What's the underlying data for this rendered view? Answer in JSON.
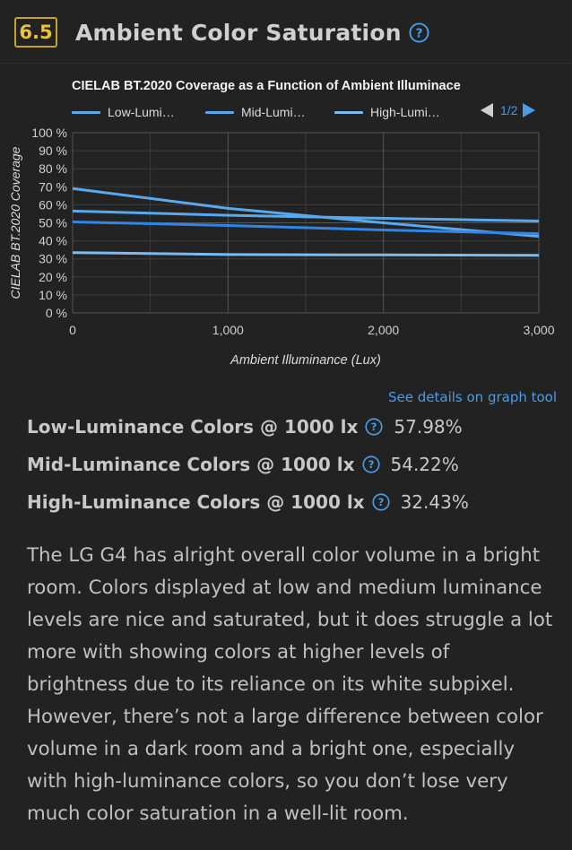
{
  "section": {
    "number": "6.5",
    "title": "Ambient Color Saturation"
  },
  "legend": {
    "items": [
      "Low-Lumi…",
      "Mid-Lumi…",
      "High-Lumi…"
    ],
    "page_label": "1/2"
  },
  "details_link": "See details on graph tool",
  "metrics": [
    {
      "label": "Low-Luminance Colors @ 1000 lx",
      "value": "57.98%"
    },
    {
      "label": "Mid-Luminance Colors @ 1000 lx",
      "value": "54.22%"
    },
    {
      "label": "High-Luminance Colors @ 1000 lx",
      "value": "32.43%"
    }
  ],
  "description": "The LG G4 has alright overall color volume in a bright room. Colors displayed at low and medium luminance levels are nice and saturated, but it does struggle a lot more with showing colors at higher levels of brightness due to its reliance on its white subpixel. However, there’s not a large difference between color volume in a dark room and a bright one, especially with high-luminance colors, so you don’t lose very much color saturation in a well-lit room.",
  "colors": {
    "accent": "#4a9be8",
    "badge_border": "#c9a227",
    "badge_text": "#e8c33d",
    "background": "#222222"
  },
  "chart_data": {
    "type": "line",
    "title": "CIELAB BT.2020 Coverage as a Function of Ambient Illuminace",
    "xlabel": "Ambient Illuminance (Lux)",
    "ylabel": "CIELAB BT.2020 Coverage",
    "xlim": [
      0,
      3000
    ],
    "ylim": [
      0,
      100
    ],
    "x_ticks": [
      "0",
      "1,000",
      "2,000",
      "3,000"
    ],
    "y_ticks": [
      "0 %",
      "10 %",
      "20 %",
      "30 %",
      "40 %",
      "50 %",
      "60 %",
      "70 %",
      "80 %",
      "90 %",
      "100 %"
    ],
    "grid": true,
    "legend_position": "top",
    "series": [
      {
        "color": "#5aa9ee",
        "points": [
          [
            0,
            69
          ],
          [
            1000,
            58
          ],
          [
            2000,
            50
          ],
          [
            3000,
            42.5
          ]
        ]
      },
      {
        "color": "#2f86ea",
        "points": [
          [
            0,
            50.5
          ],
          [
            1000,
            48.5
          ],
          [
            2000,
            46
          ],
          [
            3000,
            44
          ]
        ]
      },
      {
        "color": "#5aa9ee",
        "points": [
          [
            0,
            56.5
          ],
          [
            1000,
            54.2
          ],
          [
            2000,
            52.5
          ],
          [
            3000,
            51
          ]
        ]
      },
      {
        "color": "#7bbcf0",
        "points": [
          [
            0,
            33.5
          ],
          [
            1000,
            32.4
          ],
          [
            2000,
            32.2
          ],
          [
            3000,
            32
          ]
        ]
      }
    ]
  }
}
